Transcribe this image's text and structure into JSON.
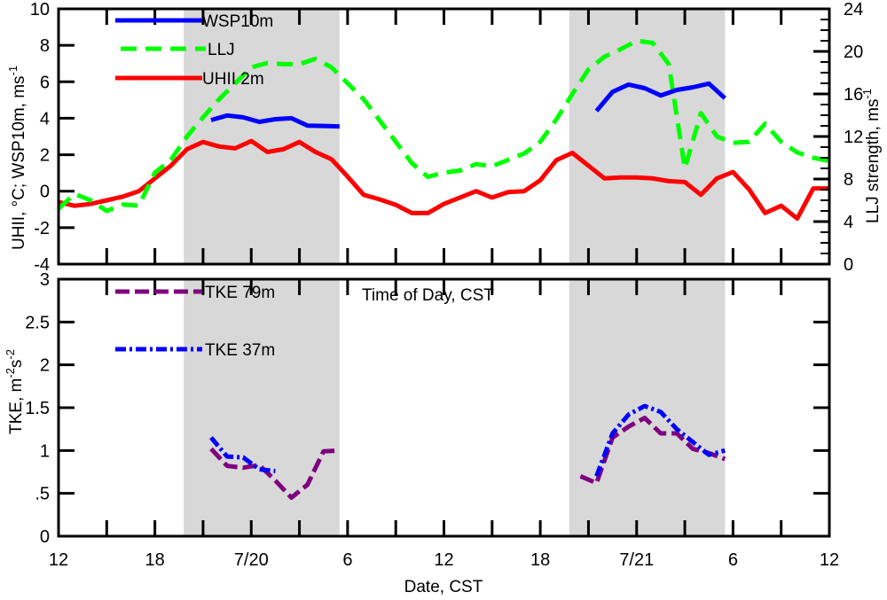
{
  "chart_data": [
    {
      "type": "line",
      "panel": "top",
      "title": "",
      "xlabel": "",
      "x_units": "hours since 12 CST 7/19",
      "xlim": [
        0,
        48
      ],
      "ylabel_left": "UHII, °C; WSP10m, ms",
      "ylabel_left_sup": "-1",
      "ylim_left": [
        -4,
        10
      ],
      "yticks_left": [
        -4,
        -2,
        0,
        2,
        4,
        6,
        8,
        10
      ],
      "ylabel_right": "LLJ strength, ms",
      "ylabel_right_sup": "-1",
      "ylim_right": [
        0,
        24
      ],
      "yticks_right": [
        0,
        4,
        8,
        12,
        16,
        20,
        24
      ],
      "shaded_periods": [
        [
          7.8,
          17.5
        ],
        [
          31.8,
          41.5
        ]
      ],
      "legend": [
        "WSP10m",
        "LLJ",
        "UHII 2m"
      ],
      "legend_placement": "top-left",
      "annotation": "Time of Day, CST",
      "series": [
        {
          "name": "WSP10m",
          "axis": "left",
          "color": "#0000ff",
          "style": "solid",
          "x": [
            9.5,
            10.5,
            11.5,
            12.5,
            13.5,
            14.5,
            15.5,
            16.5,
            17.5,
            33.5,
            34.5,
            35.5,
            36.5,
            37.5,
            38.5,
            39.5,
            40.5,
            41.5
          ],
          "y": [
            3.9,
            4.15,
            4.05,
            3.8,
            3.95,
            4.0,
            3.6,
            3.58,
            3.55,
            4.4,
            5.45,
            5.85,
            5.65,
            5.25,
            5.55,
            5.7,
            5.9,
            5.1
          ]
        },
        {
          "name": "LLJ",
          "axis": "right",
          "color": "#00ff00",
          "style": "dashed",
          "x": [
            0,
            1,
            2,
            3,
            4,
            5,
            6,
            7,
            8,
            9,
            10,
            11,
            12,
            13,
            14,
            15,
            16,
            17,
            18,
            19,
            20,
            21,
            22,
            23,
            24,
            25,
            26,
            27,
            28,
            29,
            30,
            31,
            32,
            33,
            34,
            35,
            36,
            37,
            38,
            39,
            40,
            41,
            42,
            43,
            44,
            45,
            46,
            47,
            48
          ],
          "y": [
            5.2,
            6.6,
            6.0,
            5.0,
            5.6,
            5.5,
            8.6,
            9.8,
            12.0,
            13.8,
            15.5,
            17.0,
            18.5,
            18.9,
            18.8,
            18.8,
            19.3,
            18.5,
            17.0,
            15.5,
            13.5,
            11.5,
            9.5,
            8.2,
            8.6,
            8.8,
            9.4,
            9.2,
            9.8,
            10.4,
            11.5,
            13.6,
            16.0,
            18.3,
            19.5,
            20.2,
            21.0,
            20.8,
            18.8,
            9.0,
            14.2,
            12.0,
            11.4,
            11.5,
            13.2,
            11.5,
            10.5,
            10.0,
            9.7
          ]
        },
        {
          "name": "UHII 2m",
          "axis": "left",
          "color": "#ff0000",
          "style": "solid",
          "x": [
            0,
            1,
            2,
            3,
            4,
            5,
            6,
            7,
            8,
            9,
            10,
            11,
            12,
            13,
            14,
            15,
            16,
            17,
            18,
            19,
            20,
            21,
            22,
            23,
            24,
            25,
            26,
            27,
            28,
            29,
            30,
            31,
            32,
            33,
            34,
            35,
            36,
            37,
            38,
            39,
            40,
            41,
            42,
            43,
            44,
            45,
            46,
            47,
            48
          ],
          "y": [
            -0.6,
            -0.8,
            -0.7,
            -0.5,
            -0.3,
            0.0,
            0.7,
            1.4,
            2.3,
            2.7,
            2.45,
            2.35,
            2.75,
            2.15,
            2.3,
            2.7,
            2.15,
            1.75,
            0.8,
            -0.2,
            -0.45,
            -0.75,
            -1.2,
            -1.2,
            -0.7,
            -0.35,
            0.0,
            -0.35,
            -0.05,
            0.0,
            0.6,
            1.7,
            2.1,
            1.4,
            0.7,
            0.75,
            0.75,
            0.7,
            0.55,
            0.5,
            -0.2,
            0.7,
            1.05,
            0.1,
            -1.2,
            -0.8,
            -1.5,
            0.15,
            0.15
          ]
        }
      ]
    },
    {
      "type": "line",
      "panel": "bottom",
      "title": "",
      "xlabel": "Date, CST",
      "x_units": "hours since 12 CST 7/19",
      "xlim": [
        0,
        48
      ],
      "xticks": [
        0,
        6,
        12,
        18,
        24,
        30,
        36,
        42,
        48
      ],
      "xtick_labels": [
        "12",
        "18",
        "7/20",
        "6",
        "12",
        "18",
        "7/21",
        "6",
        "12"
      ],
      "ylabel": "TKE, m",
      "ylabel_sup1": "-2",
      "ylabel_mid": "s",
      "ylabel_sup2": "-2",
      "ylim": [
        0,
        3
      ],
      "yticks": [
        0,
        0.5,
        1,
        1.5,
        2,
        2.5,
        3
      ],
      "ytick_labels": [
        "0",
        ".5",
        "1",
        "1.5",
        "2",
        "2.5",
        "3"
      ],
      "shaded_periods": [
        [
          7.8,
          17.5
        ],
        [
          31.8,
          41.5
        ]
      ],
      "legend": [
        "TKE 79m",
        "TKE 37m"
      ],
      "legend_placement": "top-left",
      "series": [
        {
          "name": "TKE 79m",
          "color": "#7f007f",
          "style": "dashed",
          "x": [
            9.5,
            10.5,
            11.5,
            12.5,
            13.0,
            14.5,
            15.5,
            16.5,
            17.5,
            32.5,
            33.5,
            34.5,
            35.5,
            36.5,
            37.5,
            38.5,
            39.5,
            40.5,
            41.5
          ],
          "y": [
            1.02,
            0.82,
            0.8,
            0.83,
            0.83,
            0.45,
            0.6,
            0.99,
            1.0,
            0.7,
            0.62,
            1.15,
            1.28,
            1.38,
            1.2,
            1.2,
            1.02,
            0.97,
            0.9
          ],
          "x_break": [
            9.5,
            10.5,
            11.5,
            12.5,
            13.5,
            14.5,
            15.5,
            16.5,
            17.5
          ],
          "y_break": [
            1.02,
            0.82,
            0.8,
            0.83,
            0.65,
            0.45,
            0.6,
            0.99,
            1.0
          ]
        },
        {
          "name": "TKE 37m",
          "color": "#0000ff",
          "style": "dash-dot",
          "x": [
            9.5,
            10.5,
            11.5,
            12.5,
            13.5,
            33.5,
            34.5,
            35.5,
            36.5,
            37.5,
            38.5,
            39.5,
            40.5,
            41.5
          ],
          "y": [
            1.15,
            0.93,
            0.92,
            0.78,
            0.76,
            0.7,
            1.2,
            1.42,
            1.52,
            1.45,
            1.25,
            1.1,
            0.95,
            1.0
          ]
        }
      ]
    }
  ],
  "labels": {
    "top_y_left_ticks": [
      "-4",
      "-2",
      "0",
      "2",
      "4",
      "6",
      "8",
      "10"
    ],
    "top_y_right_ticks": [
      "0",
      "4",
      "8",
      "12",
      "16",
      "20",
      "24"
    ]
  }
}
